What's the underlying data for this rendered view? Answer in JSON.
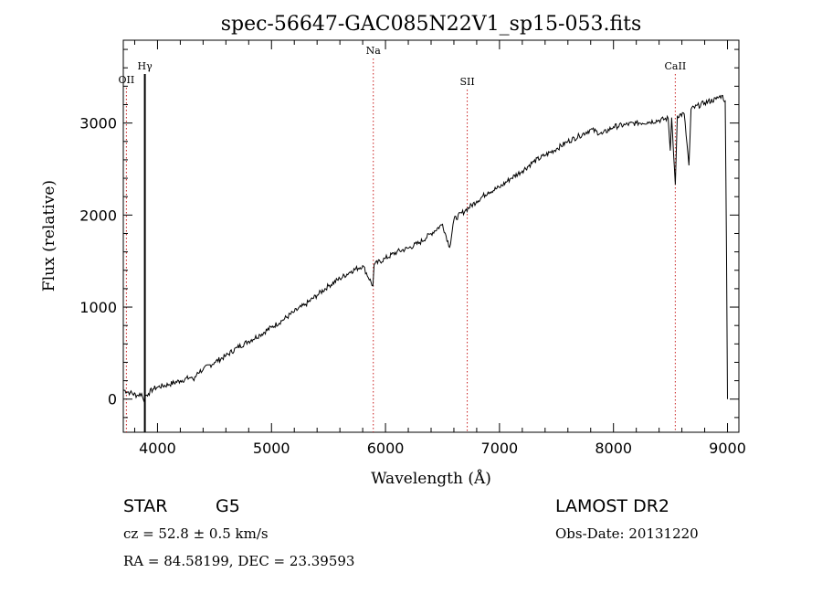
{
  "chart_data": {
    "type": "line",
    "title": "spec-56647-GAC085N22V1_sp15-053.fits",
    "xlabel": "Wavelength (Å)",
    "ylabel": "Flux (relative)",
    "xlim": [
      3700,
      9100
    ],
    "ylim": [
      -360,
      3900
    ],
    "x_ticks": [
      4000,
      5000,
      6000,
      7000,
      8000,
      9000
    ],
    "y_ticks": [
      0,
      1000,
      2000,
      3000
    ],
    "grid": false,
    "series": [
      {
        "color": "#000000",
        "points": [
          [
            3700,
            100
          ],
          [
            3760,
            70
          ],
          [
            3820,
            40
          ],
          [
            3860,
            60
          ],
          [
            3880,
            -20
          ],
          [
            3890,
            30
          ],
          [
            3920,
            60
          ],
          [
            3960,
            110
          ],
          [
            4000,
            130
          ],
          [
            4100,
            160
          ],
          [
            4200,
            200
          ],
          [
            4300,
            240
          ],
          [
            4320,
            200
          ],
          [
            4350,
            290
          ],
          [
            4400,
            320
          ],
          [
            4500,
            400
          ],
          [
            4600,
            470
          ],
          [
            4700,
            560
          ],
          [
            4800,
            630
          ],
          [
            4900,
            700
          ],
          [
            5000,
            780
          ],
          [
            5100,
            860
          ],
          [
            5200,
            950
          ],
          [
            5300,
            1030
          ],
          [
            5400,
            1130
          ],
          [
            5500,
            1230
          ],
          [
            5600,
            1310
          ],
          [
            5700,
            1390
          ],
          [
            5800,
            1450
          ],
          [
            5890,
            1230
          ],
          [
            5900,
            1460
          ],
          [
            6000,
            1530
          ],
          [
            6100,
            1600
          ],
          [
            6200,
            1640
          ],
          [
            6300,
            1700
          ],
          [
            6400,
            1800
          ],
          [
            6500,
            1900
          ],
          [
            6563,
            1650
          ],
          [
            6600,
            1950
          ],
          [
            6700,
            2050
          ],
          [
            6800,
            2150
          ],
          [
            6900,
            2250
          ],
          [
            7000,
            2300
          ],
          [
            7100,
            2400
          ],
          [
            7200,
            2480
          ],
          [
            7300,
            2580
          ],
          [
            7400,
            2650
          ],
          [
            7500,
            2720
          ],
          [
            7600,
            2800
          ],
          [
            7700,
            2860
          ],
          [
            7800,
            2930
          ],
          [
            7900,
            2880
          ],
          [
            8000,
            2960
          ],
          [
            8100,
            2980
          ],
          [
            8200,
            3000
          ],
          [
            8300,
            3010
          ],
          [
            8400,
            3030
          ],
          [
            8480,
            3050
          ],
          [
            8498,
            2700
          ],
          [
            8510,
            3060
          ],
          [
            8542,
            2330
          ],
          [
            8560,
            3080
          ],
          [
            8620,
            3100
          ],
          [
            8662,
            2540
          ],
          [
            8680,
            3150
          ],
          [
            8800,
            3220
          ],
          [
            8900,
            3260
          ],
          [
            8950,
            3300
          ],
          [
            8980,
            3240
          ],
          [
            8992,
            1500
          ],
          [
            9000,
            0
          ]
        ]
      }
    ],
    "annotations": [
      {
        "label": "OII",
        "x": 3727,
        "color": "#c81e1e",
        "style": "dotted"
      },
      {
        "label": "Hγ",
        "x": 3889,
        "color": "#000000",
        "style": "solid"
      },
      {
        "label": "Na",
        "x": 5893,
        "color": "#c81e1e",
        "style": "dotted"
      },
      {
        "label": "SII",
        "x": 6717,
        "color": "#c81e1e",
        "style": "dotted"
      },
      {
        "label": "CaII",
        "x": 8542,
        "color": "#c81e1e",
        "style": "dotted"
      }
    ]
  },
  "info": {
    "class_label": "STAR",
    "subclass": "G5",
    "survey": "LAMOST DR2",
    "cz": "cz = 52.8 ± 0.5 km/s",
    "obs_date": "Obs-Date: 20131220",
    "radec": "RA =  84.58199, DEC =  23.39593"
  },
  "colors": {
    "spectrum": "#000000",
    "line_markers": "#c81e1e",
    "background": "#ffffff"
  }
}
